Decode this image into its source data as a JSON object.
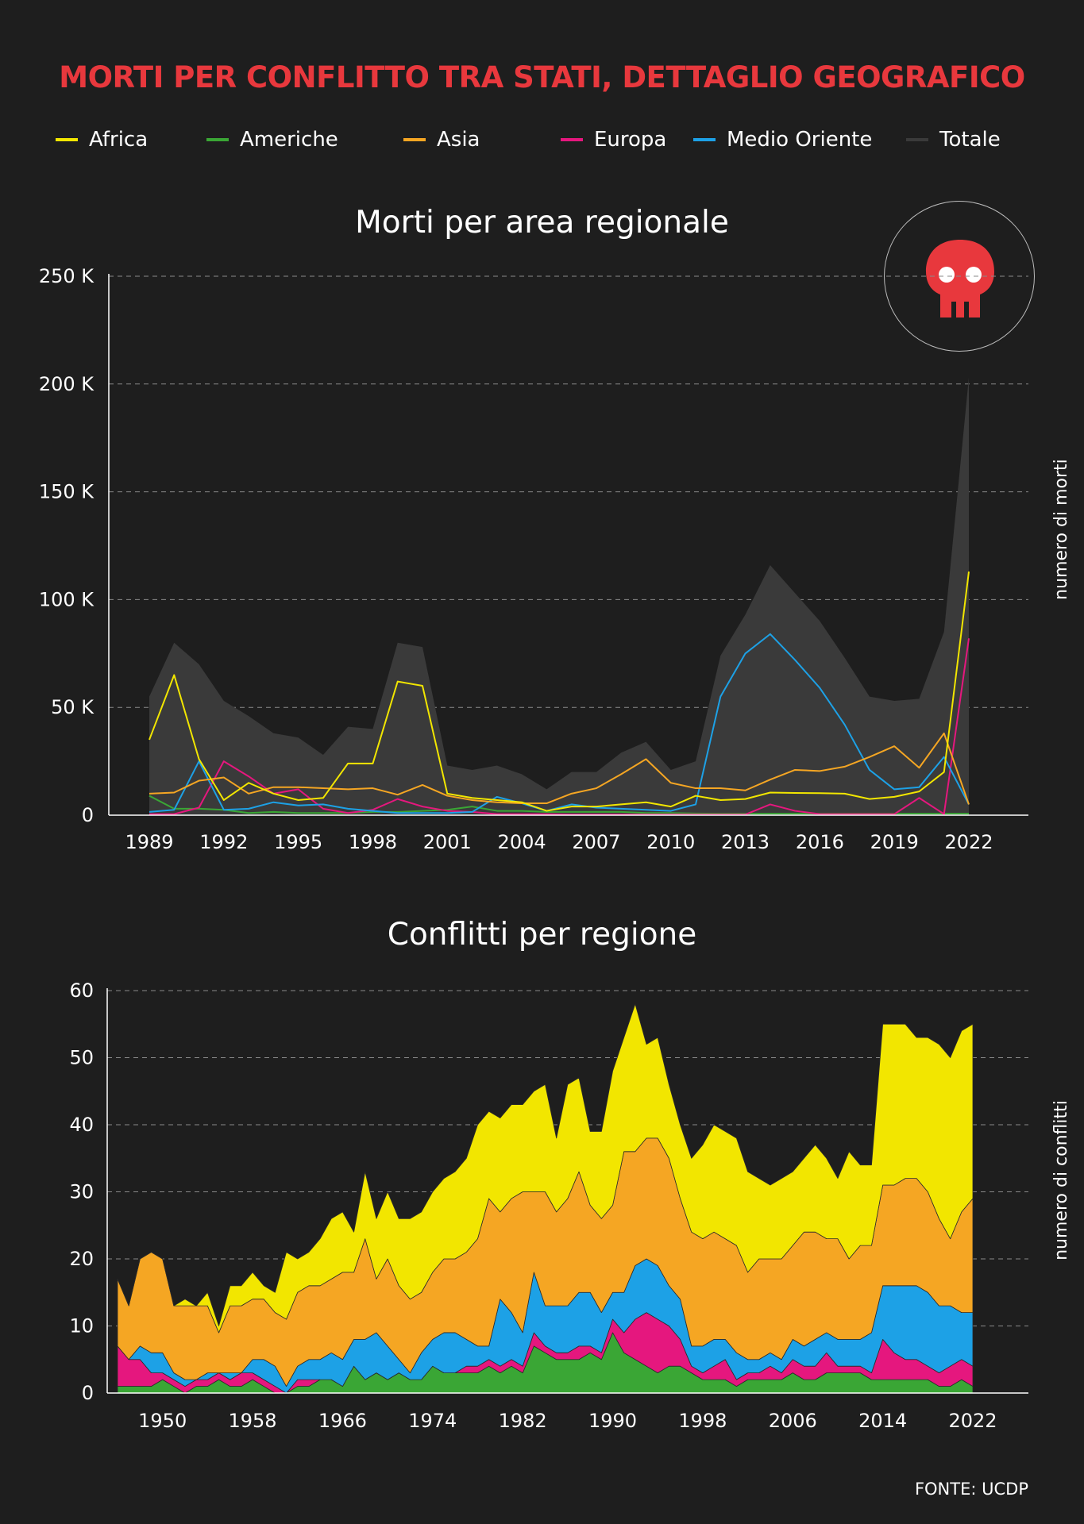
{
  "title": "MORTI PER CONFLITTO TRA STATI, DETTAGLIO GEOGRAFICO",
  "legend": [
    {
      "label": "Africa",
      "color": "#f2e600"
    },
    {
      "label": "Americhe",
      "color": "#3aa635"
    },
    {
      "label": "Asia",
      "color": "#f5a623"
    },
    {
      "label": "Europa",
      "color": "#e5177e"
    },
    {
      "label": "Medio Oriente",
      "color": "#1da1e6"
    },
    {
      "label": "Totale",
      "color": "#3a3a3a"
    }
  ],
  "source": "FONTE: UCDP",
  "icon": "skull-icon",
  "colors": {
    "background": "#1e1e1e",
    "title": "#e8383d",
    "badge": "#e8383d"
  },
  "chart_data": [
    {
      "type": "line",
      "title": "Morti per area regionale",
      "ylabel": "numero di morti",
      "xlabel": "",
      "ylim": [
        0,
        250000
      ],
      "yticks": [
        0,
        50000,
        100000,
        150000,
        200000,
        250000
      ],
      "ytick_labels": [
        "0",
        "50 K",
        "100 K",
        "150 K",
        "200 K",
        "250 K"
      ],
      "xticks": [
        1989,
        1992,
        1995,
        1998,
        2001,
        2004,
        2007,
        2010,
        2013,
        2016,
        2019,
        2022
      ],
      "x": [
        1989,
        1990,
        1991,
        1992,
        1993,
        1994,
        1995,
        1996,
        1997,
        1998,
        1999,
        2000,
        2001,
        2002,
        2003,
        2004,
        2005,
        2006,
        2007,
        2008,
        2009,
        2010,
        2011,
        2012,
        2013,
        2014,
        2015,
        2016,
        2017,
        2018,
        2019,
        2020,
        2021,
        2022
      ],
      "grid": true,
      "area_series": {
        "name": "Totale",
        "values": [
          55000,
          80000,
          70000,
          53000,
          46000,
          38000,
          36000,
          28000,
          41000,
          40000,
          80000,
          78000,
          23000,
          21000,
          23000,
          19000,
          12000,
          20000,
          20000,
          29000,
          34000,
          21000,
          25000,
          74000,
          93000,
          116000,
          103000,
          90000,
          73000,
          55000,
          53000,
          54000,
          85000,
          203000
        ]
      },
      "series": [
        {
          "name": "Africa",
          "values": [
            35000,
            65000,
            26000,
            7000,
            15000,
            10000,
            7000,
            8000,
            24000,
            24000,
            62000,
            60000,
            10000,
            8000,
            7000,
            6000,
            2000,
            4000,
            4000,
            5000,
            6000,
            4000,
            9000,
            7000,
            7500,
            10500,
            10300,
            10200,
            10000,
            7500,
            8500,
            11000,
            20000,
            113000
          ]
        },
        {
          "name": "Americhe",
          "values": [
            9000,
            3000,
            3000,
            2500,
            1000,
            1500,
            1000,
            1000,
            1000,
            1500,
            1500,
            2000,
            2500,
            4000,
            2000,
            2000,
            1500,
            1500,
            1500,
            1500,
            1000,
            1000,
            800,
            700,
            700,
            700,
            700,
            700,
            700,
            700,
            700,
            700,
            700,
            700
          ]
        },
        {
          "name": "Asia",
          "values": [
            10000,
            10500,
            16000,
            17500,
            10000,
            13000,
            13000,
            12500,
            12000,
            12500,
            9500,
            14000,
            9000,
            7000,
            6000,
            5500,
            5500,
            10000,
            12500,
            19000,
            26000,
            15000,
            12500,
            12500,
            11500,
            16500,
            21000,
            20500,
            22500,
            27000,
            32000,
            22000,
            38000,
            5000
          ]
        },
        {
          "name": "Europa",
          "values": [
            500,
            500,
            3500,
            25000,
            18000,
            10000,
            12000,
            3000,
            1000,
            2500,
            7500,
            4000,
            2000,
            1500,
            500,
            500,
            500,
            300,
            300,
            300,
            300,
            300,
            300,
            300,
            300,
            5000,
            2000,
            500,
            500,
            500,
            500,
            8000,
            500,
            82000
          ]
        },
        {
          "name": "Medio Oriente",
          "values": [
            1500,
            2500,
            25000,
            2500,
            3000,
            6000,
            4500,
            5000,
            3000,
            2000,
            1000,
            1000,
            1000,
            1500,
            8500,
            5500,
            2000,
            5000,
            3500,
            3000,
            2500,
            2000,
            5000,
            55000,
            75000,
            84000,
            72000,
            59000,
            42000,
            21000,
            12000,
            13000,
            27000,
            5000
          ]
        }
      ]
    },
    {
      "type": "area",
      "stacked": true,
      "title": "Conflitti per regione",
      "ylabel": "numero di conflitti",
      "xlabel": "",
      "ylim": [
        0,
        60
      ],
      "yticks": [
        0,
        10,
        20,
        30,
        40,
        50,
        60
      ],
      "xticks": [
        1950,
        1958,
        1966,
        1974,
        1982,
        1990,
        1998,
        2006,
        2014,
        2022
      ],
      "xlim": [
        1946,
        2022
      ],
      "x": [
        1946,
        1947,
        1948,
        1949,
        1950,
        1951,
        1952,
        1953,
        1954,
        1955,
        1956,
        1957,
        1958,
        1959,
        1960,
        1961,
        1962,
        1963,
        1964,
        1965,
        1966,
        1967,
        1968,
        1969,
        1970,
        1971,
        1972,
        1973,
        1974,
        1975,
        1976,
        1977,
        1978,
        1979,
        1980,
        1981,
        1982,
        1983,
        1984,
        1985,
        1986,
        1987,
        1988,
        1989,
        1990,
        1991,
        1992,
        1993,
        1994,
        1995,
        1996,
        1997,
        1998,
        1999,
        2000,
        2001,
        2002,
        2003,
        2004,
        2005,
        2006,
        2007,
        2008,
        2009,
        2010,
        2011,
        2012,
        2013,
        2014,
        2015,
        2016,
        2017,
        2018,
        2019,
        2020,
        2021,
        2022
      ],
      "grid": true,
      "series": [
        {
          "name": "Americhe",
          "values": [
            1,
            1,
            1,
            1,
            2,
            1,
            0,
            1,
            1,
            2,
            1,
            1,
            2,
            1,
            0,
            0,
            1,
            1,
            2,
            2,
            1,
            4,
            2,
            3,
            2,
            3,
            2,
            2,
            4,
            3,
            3,
            3,
            3,
            4,
            3,
            4,
            3,
            7,
            6,
            5,
            5,
            5,
            6,
            5,
            9,
            6,
            5,
            4,
            3,
            4,
            4,
            3,
            2,
            2,
            2,
            1,
            2,
            2,
            2,
            2,
            3,
            2,
            2,
            3,
            3,
            3,
            3,
            2,
            2,
            2,
            2,
            2,
            2,
            1,
            1,
            2,
            1
          ]
        },
        {
          "name": "Europa",
          "values": [
            6,
            4,
            4,
            2,
            1,
            1,
            1,
            1,
            1,
            1,
            1,
            2,
            1,
            1,
            1,
            0,
            1,
            1,
            0,
            0,
            0,
            0,
            0,
            0,
            0,
            0,
            0,
            0,
            0,
            0,
            0,
            1,
            1,
            1,
            1,
            1,
            1,
            2,
            1,
            1,
            1,
            2,
            1,
            1,
            2,
            3,
            6,
            8,
            8,
            6,
            4,
            1,
            1,
            2,
            3,
            1,
            1,
            1,
            2,
            1,
            2,
            2,
            2,
            3,
            1,
            1,
            1,
            1,
            6,
            4,
            3,
            3,
            2,
            2,
            3,
            3,
            3
          ]
        },
        {
          "name": "Medio Oriente",
          "values": [
            0,
            0,
            2,
            3,
            3,
            1,
            1,
            0,
            1,
            0,
            1,
            0,
            2,
            3,
            3,
            1,
            2,
            3,
            3,
            4,
            4,
            4,
            6,
            6,
            5,
            2,
            1,
            4,
            4,
            6,
            6,
            4,
            3,
            2,
            10,
            7,
            5,
            9,
            6,
            7,
            7,
            8,
            8,
            6,
            4,
            6,
            8,
            8,
            8,
            6,
            6,
            3,
            4,
            4,
            3,
            4,
            2,
            2,
            2,
            2,
            3,
            3,
            4,
            3,
            4,
            4,
            4,
            6,
            8,
            10,
            11,
            11,
            11,
            10,
            9,
            7,
            8
          ]
        },
        {
          "name": "Asia",
          "values": [
            10,
            8,
            13,
            15,
            14,
            10,
            11,
            11,
            10,
            6,
            10,
            10,
            9,
            9,
            8,
            10,
            11,
            11,
            11,
            11,
            13,
            10,
            15,
            8,
            13,
            11,
            11,
            9,
            10,
            11,
            11,
            13,
            16,
            22,
            13,
            17,
            21,
            12,
            17,
            14,
            16,
            18,
            13,
            14,
            13,
            21,
            17,
            18,
            19,
            19,
            15,
            17,
            16,
            16,
            15,
            16,
            13,
            15,
            14,
            15,
            14,
            17,
            16,
            14,
            15,
            12,
            14,
            13,
            15,
            15,
            16,
            16,
            15,
            13,
            10,
            15,
            17
          ]
        },
        {
          "name": "Africa",
          "values": [
            0,
            0,
            0,
            0,
            0,
            0,
            1,
            0,
            2,
            1,
            3,
            3,
            4,
            2,
            3,
            10,
            5,
            5,
            7,
            9,
            9,
            6,
            10,
            9,
            10,
            10,
            12,
            12,
            12,
            12,
            13,
            14,
            17,
            13,
            14,
            14,
            13,
            15,
            16,
            11,
            17,
            14,
            11,
            13,
            20,
            17,
            22,
            14,
            15,
            11,
            11,
            11,
            14,
            16,
            16,
            16,
            15,
            12,
            11,
            12,
            11,
            11,
            13,
            12,
            9,
            16,
            12,
            12,
            24,
            24,
            23,
            21,
            23,
            26,
            27,
            27,
            26
          ]
        }
      ]
    }
  ]
}
